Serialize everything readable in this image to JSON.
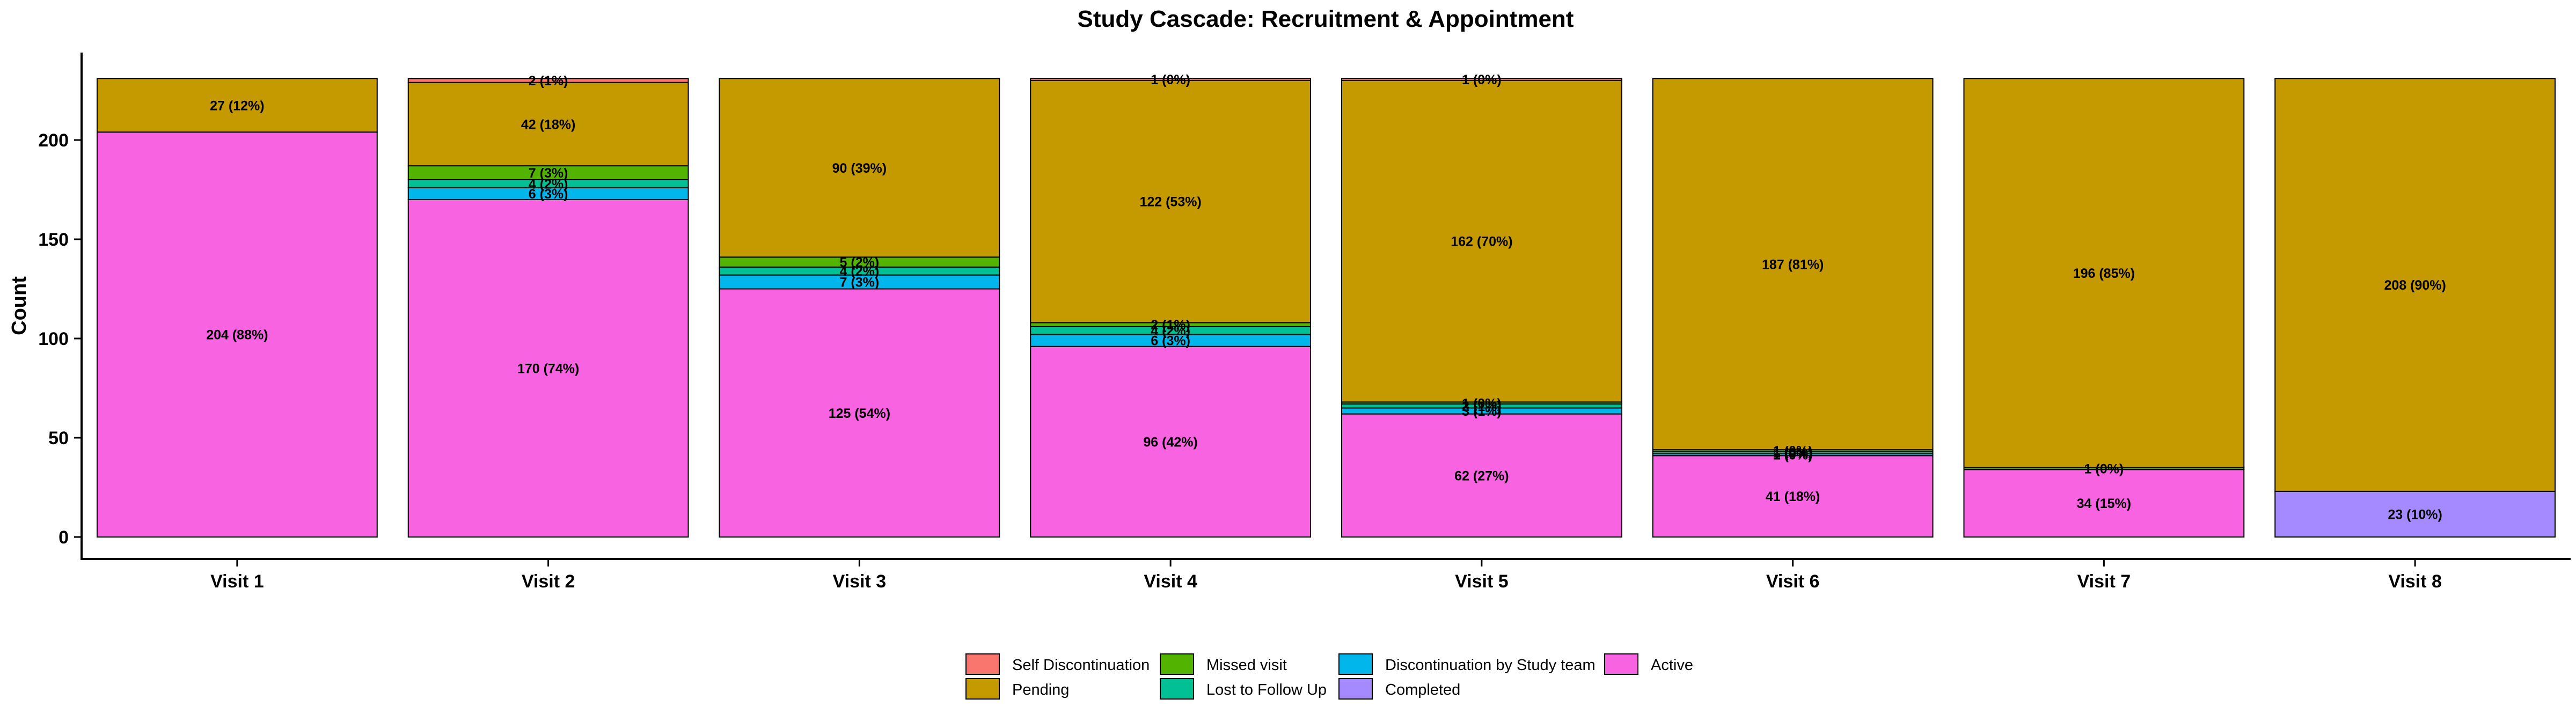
{
  "chart_data": {
    "type": "bar",
    "stacked": true,
    "title": "Study Cascade: Recruitment & Appointment",
    "xlabel": "",
    "ylabel": "Count",
    "ylim": [
      0,
      240
    ],
    "yticks": [
      0,
      50,
      100,
      150,
      200
    ],
    "grid": false,
    "legend_position": "bottom",
    "categories": [
      "Visit 1",
      "Visit 2",
      "Visit 3",
      "Visit 4",
      "Visit 5",
      "Visit 6",
      "Visit 7",
      "Visit 8"
    ],
    "series": [
      {
        "name": "Active",
        "color": "#F763E0",
        "values": [
          204,
          170,
          125,
          96,
          62,
          41,
          34,
          0
        ],
        "labels": [
          "204 (88%)",
          "170 (74%)",
          "125 (54%)",
          "96 (42%)",
          "62 (27%)",
          "41 (18%)",
          "34 (15%)",
          ""
        ]
      },
      {
        "name": "Completed",
        "color": "#A58AFF",
        "values": [
          0,
          0,
          0,
          0,
          0,
          0,
          0,
          23
        ],
        "labels": [
          "",
          "",
          "",
          "",
          "",
          "",
          "",
          "23 (10%)"
        ]
      },
      {
        "name": "Discontinuation by Study team",
        "color": "#00B6EB",
        "values": [
          0,
          6,
          7,
          6,
          3,
          1,
          0,
          0
        ],
        "labels": [
          "",
          "6 (3%)",
          "7 (3%)",
          "6 (3%)",
          "3 (1%)",
          "1 (0%)",
          "",
          ""
        ]
      },
      {
        "name": "Lost to Follow Up",
        "color": "#00C094",
        "values": [
          0,
          4,
          4,
          4,
          2,
          1,
          0,
          0
        ],
        "labels": [
          "",
          "4 (2%)",
          "4 (2%)",
          "4 (2%)",
          "2 (1%)",
          "1 (0%)",
          "",
          ""
        ]
      },
      {
        "name": "Missed visit",
        "color": "#53B400",
        "values": [
          0,
          7,
          5,
          2,
          1,
          1,
          1,
          0
        ],
        "labels": [
          "",
          "7 (3%)",
          "5 (2%)",
          "2 (1%)",
          "1 (0%)",
          "1 (0%)",
          "1 (0%)",
          ""
        ]
      },
      {
        "name": "Pending",
        "color": "#C49A00",
        "values": [
          27,
          42,
          90,
          122,
          162,
          187,
          196,
          208
        ],
        "labels": [
          "27 (12%)",
          "42 (18%)",
          "90 (39%)",
          "122 (53%)",
          "162 (70%)",
          "187 (81%)",
          "196 (85%)",
          "208 (90%)"
        ]
      },
      {
        "name": "Self Discontinuation",
        "color": "#F8766D",
        "values": [
          0,
          2,
          0,
          1,
          1,
          0,
          0,
          0
        ],
        "labels": [
          "",
          "2 (1%)",
          "",
          "1 (0%)",
          "1 (0%)",
          "",
          "",
          ""
        ]
      }
    ],
    "legend": [
      {
        "name": "Self Discontinuation",
        "color": "#F8766D"
      },
      {
        "name": "Pending",
        "color": "#C49A00"
      },
      {
        "name": "Missed visit",
        "color": "#53B400"
      },
      {
        "name": "Lost to Follow Up",
        "color": "#00C094"
      },
      {
        "name": "Discontinuation by Study team",
        "color": "#00B6EB"
      },
      {
        "name": "Completed",
        "color": "#A58AFF"
      },
      {
        "name": "Active",
        "color": "#F763E0"
      }
    ]
  }
}
